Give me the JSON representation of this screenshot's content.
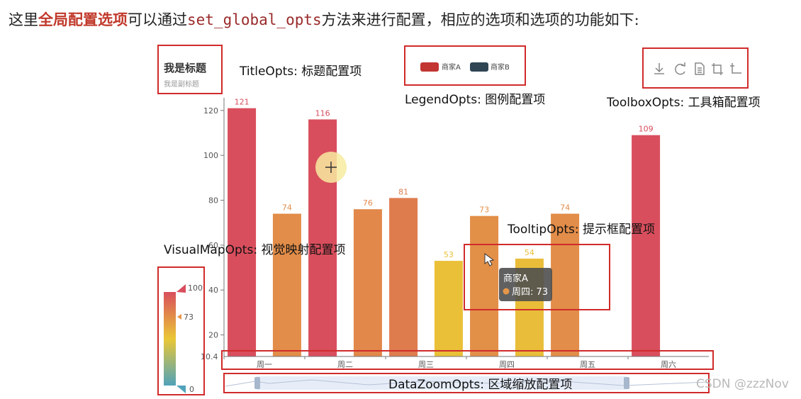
{
  "intro": {
    "p1": "这里",
    "p2": "全局配置选项",
    "p3": "可以通过",
    "p4": "set_global_opts",
    "p5": "方法来进行配置，相应的选项和选项的功能如下:"
  },
  "chart_data": {
    "type": "bar",
    "title": "我是标题",
    "subtitle": "我是副标题",
    "categories": [
      "周一",
      "周二",
      "周三",
      "周四",
      "周五",
      "周六"
    ],
    "series": [
      {
        "name": "商家A",
        "values": [
          121,
          116,
          81,
          73,
          74,
          109
        ]
      },
      {
        "name": "商家B",
        "values": [
          74,
          76,
          53,
          54,
          null,
          null
        ]
      }
    ],
    "yticks": [
      20,
      40,
      60,
      80,
      100,
      120
    ],
    "ymin_label": "10.4",
    "ylim": [
      10.4,
      125
    ],
    "legend": {
      "position": "top",
      "items": [
        "商家A",
        "商家B"
      ]
    },
    "visualmap": {
      "max": "100",
      "mid": "73",
      "min": "0",
      "colors": [
        "#d94e5d",
        "#eac736",
        "#50a3ba"
      ]
    },
    "tooltip": {
      "series": "商家A",
      "item": "周四: 73"
    }
  },
  "annotations": {
    "title": "TitleOpts: 标题配置项",
    "legend": "LegendOpts: 图例配置项",
    "toolbox": "ToolboxOpts: 工具箱配置项",
    "tooltip": "TooltipOpts: 提示框配置项",
    "visualmap": "VisualMapOpts: 视觉映射配置项",
    "datazoom": "DataZoomOpts: 区域缩放配置项"
  },
  "watermark": "CSDN @zzzNov"
}
